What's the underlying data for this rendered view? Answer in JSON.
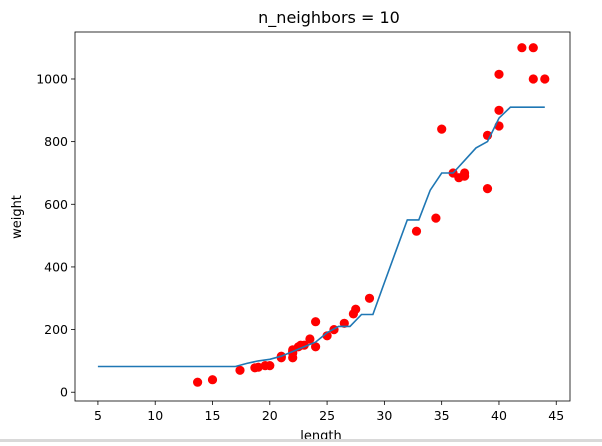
{
  "chart_data": {
    "type": "scatter",
    "title": "n_neighbors = 10",
    "xlabel": "length",
    "ylabel": "weight",
    "xlim": [
      3,
      46.2
    ],
    "ylim": [
      -28,
      1150
    ],
    "xticks": [
      5,
      10,
      15,
      20,
      25,
      30,
      35,
      40,
      45
    ],
    "yticks": [
      0,
      200,
      400,
      600,
      800,
      1000
    ],
    "grid": false,
    "legend": false,
    "colors": {
      "scatter": "#ff0000",
      "line": "#1f77b4"
    },
    "series": [
      {
        "type": "scatter",
        "points": [
          [
            13.7,
            32
          ],
          [
            15.0,
            40
          ],
          [
            17.4,
            70
          ],
          [
            18.7,
            78
          ],
          [
            19.0,
            80
          ],
          [
            19.6,
            85
          ],
          [
            20.0,
            85
          ],
          [
            21.0,
            110
          ],
          [
            21.0,
            115
          ],
          [
            22.0,
            110
          ],
          [
            22.0,
            125
          ],
          [
            22.0,
            130
          ],
          [
            22.0,
            135
          ],
          [
            22.5,
            145
          ],
          [
            22.7,
            150
          ],
          [
            23.0,
            150
          ],
          [
            23.5,
            170
          ],
          [
            24.0,
            145
          ],
          [
            24.0,
            225
          ],
          [
            25.0,
            180
          ],
          [
            25.6,
            200
          ],
          [
            26.5,
            220
          ],
          [
            27.3,
            250
          ],
          [
            27.5,
            265
          ],
          [
            28.7,
            300
          ],
          [
            32.8,
            514
          ],
          [
            34.5,
            556
          ],
          [
            35.0,
            840
          ],
          [
            36.0,
            700
          ],
          [
            36.5,
            685
          ],
          [
            37.0,
            700
          ],
          [
            37.0,
            690
          ],
          [
            39.0,
            650
          ],
          [
            39.0,
            820
          ],
          [
            40.0,
            850
          ],
          [
            40.0,
            900
          ],
          [
            40.0,
            1015
          ],
          [
            42.0,
            1100
          ],
          [
            43.0,
            1100
          ],
          [
            43.0,
            1000
          ],
          [
            44.0,
            1000
          ]
        ]
      },
      {
        "type": "line",
        "x": [
          5,
          17,
          18,
          19,
          20,
          21,
          22,
          23,
          24,
          25,
          26,
          27,
          28,
          29,
          30,
          31,
          32,
          33,
          34,
          35,
          36,
          37,
          38,
          39,
          40,
          41,
          42,
          43,
          44
        ],
        "y": [
          82,
          82,
          92,
          100,
          105,
          115,
          130,
          145,
          160,
          190,
          210,
          210,
          248,
          248,
          350,
          450,
          550,
          550,
          645,
          700,
          700,
          740,
          780,
          800,
          875,
          910,
          910,
          910,
          910
        ]
      }
    ]
  }
}
